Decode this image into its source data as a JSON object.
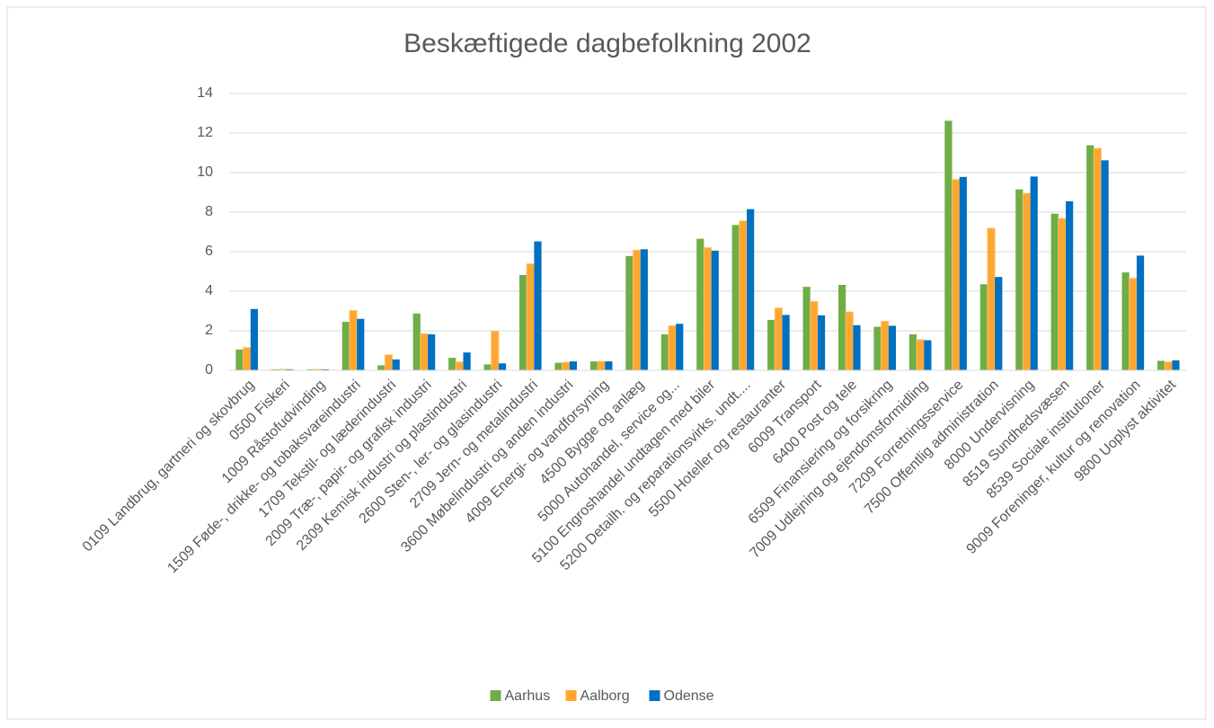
{
  "chart_data": {
    "type": "bar",
    "title": "Beskæftigede dagbefolkning 2002",
    "categories": [
      "0109 Landbrug, gartneri og skovbrug",
      "0500 Fiskeri",
      "1009 Råstofudvinding",
      "1509 Føde-, drikke- og tobaksvareindustri",
      "1709 Tekstil- og læderindustri",
      "2009 Træ-, papir- og grafisk industri",
      "2309 Kemisk industri og plastindustri",
      "2600 Sten-, ler- og glasindustri",
      "2709 Jern- og metalindustri",
      "3600 Møbelindustri og anden industri",
      "4009 Energi- og vandforsyning",
      "4500 Bygge og anlæg",
      "5000 Autohandel, service og...",
      "5100 Engroshandel undtagen med biler",
      "5200 Detailh. og reparationsvirks. undt....",
      "5500 Hoteller og restauranter",
      "6009 Transport",
      "6400 Post og tele",
      "6509 Finansiering og forsikring",
      "7009 Udlejning og ejendomsformidling",
      "7209 Forretningsservice",
      "7500 Offentlig administration",
      "8000 Undervisning",
      "8519 Sundhedsvæsen",
      "8539 Sociale institutioner",
      "9009 Foreninger, kultur og renovation",
      "9800 Uoplyst aktivitet"
    ],
    "series": [
      {
        "name": "Aarhus",
        "color": "#70ad47",
        "values": [
          1.05,
          0.05,
          0.05,
          2.45,
          0.25,
          2.87,
          0.63,
          0.3,
          4.82,
          0.38,
          0.45,
          5.78,
          1.82,
          6.65,
          7.35,
          2.55,
          4.22,
          4.32,
          2.2,
          1.82,
          12.62,
          4.35,
          9.15,
          7.92,
          11.38,
          4.95,
          0.48
        ]
      },
      {
        "name": "Aalborg",
        "color": "#ffa62f",
        "values": [
          1.15,
          0.05,
          0.05,
          3.02,
          0.78,
          1.85,
          0.42,
          1.98,
          5.38,
          0.4,
          0.45,
          6.08,
          2.25,
          6.2,
          7.55,
          3.15,
          3.48,
          2.95,
          2.48,
          1.55,
          9.65,
          7.18,
          8.95,
          7.68,
          11.22,
          4.65,
          0.42
        ]
      },
      {
        "name": "Odense",
        "color": "#0070c0",
        "values": [
          3.1,
          0.05,
          0.05,
          2.6,
          0.55,
          1.82,
          0.9,
          0.35,
          6.52,
          0.45,
          0.45,
          6.12,
          2.35,
          6.05,
          8.15,
          2.8,
          2.78,
          2.28,
          2.25,
          1.52,
          9.78,
          4.72,
          9.8,
          8.55,
          10.62,
          5.8,
          0.5
        ]
      }
    ],
    "ylim": [
      0,
      14
    ],
    "yticks": [
      0,
      2,
      4,
      6,
      8,
      10,
      12,
      14
    ],
    "grid": true,
    "legend": "bottom"
  }
}
